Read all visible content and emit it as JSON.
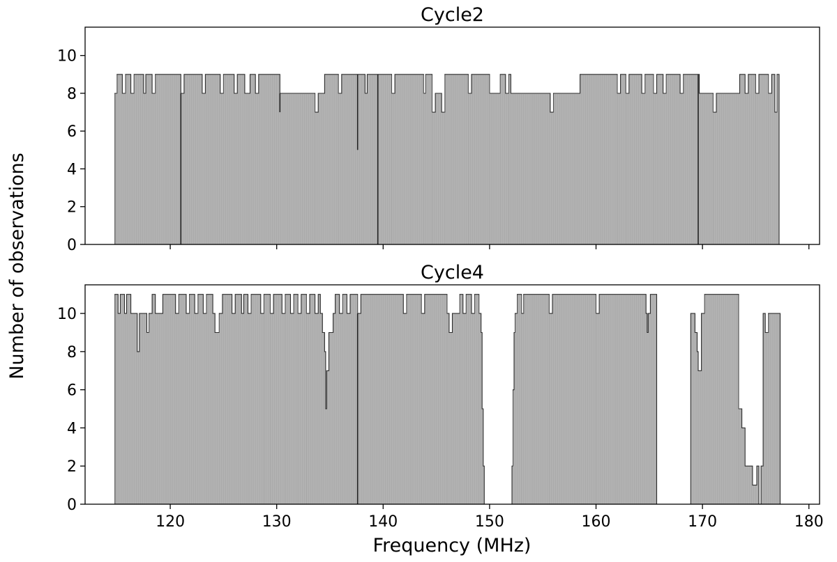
{
  "figure": {
    "ylabel": "Number of observations",
    "xlabel": "Frequency (MHz)"
  },
  "chart_data": [
    {
      "type": "histogram",
      "title": "Cycle2",
      "xlim": [
        112,
        181
      ],
      "ylim": [
        0,
        11.5
      ],
      "xticks": [
        120,
        130,
        140,
        150,
        160,
        170,
        180
      ],
      "yticks": [
        0,
        2,
        4,
        6,
        8,
        10
      ],
      "xtick_labels_shown": false,
      "fill_color": "#b2b2b2",
      "edge_color": "#2b2b2b",
      "steps": [
        [
          114.8,
          8
        ],
        [
          115.0,
          9
        ],
        [
          115.5,
          8
        ],
        [
          115.8,
          9
        ],
        [
          116.3,
          8
        ],
        [
          116.6,
          9
        ],
        [
          117.5,
          8
        ],
        [
          117.7,
          9
        ],
        [
          118.3,
          8
        ],
        [
          118.6,
          9
        ],
        [
          121.0,
          8
        ],
        [
          121.3,
          9
        ],
        [
          123.0,
          8
        ],
        [
          123.3,
          9
        ],
        [
          124.7,
          8
        ],
        [
          125.0,
          9
        ],
        [
          126.0,
          8
        ],
        [
          126.3,
          9
        ],
        [
          127.0,
          8
        ],
        [
          127.5,
          9
        ],
        [
          128.0,
          8
        ],
        [
          128.3,
          9
        ],
        [
          130.3,
          8
        ],
        [
          133.6,
          7
        ],
        [
          133.9,
          8
        ],
        [
          134.5,
          9
        ],
        [
          135.8,
          8
        ],
        [
          136.1,
          9
        ],
        [
          138.3,
          8
        ],
        [
          138.5,
          9
        ],
        [
          140.8,
          8
        ],
        [
          141.1,
          9
        ],
        [
          143.8,
          8
        ],
        [
          144.0,
          9
        ],
        [
          144.6,
          7
        ],
        [
          144.9,
          8
        ],
        [
          145.5,
          7
        ],
        [
          145.8,
          9
        ],
        [
          148.0,
          8
        ],
        [
          148.3,
          9
        ],
        [
          150.0,
          8
        ],
        [
          151.0,
          9
        ],
        [
          151.5,
          8
        ],
        [
          151.8,
          9
        ],
        [
          152.0,
          8
        ],
        [
          155.7,
          7
        ],
        [
          156.0,
          8
        ],
        [
          158.5,
          9
        ],
        [
          162.0,
          8
        ],
        [
          162.3,
          9
        ],
        [
          162.8,
          8
        ],
        [
          163.1,
          9
        ],
        [
          164.3,
          8
        ],
        [
          164.6,
          9
        ],
        [
          165.4,
          8
        ],
        [
          165.7,
          9
        ],
        [
          166.3,
          8
        ],
        [
          166.6,
          9
        ],
        [
          167.9,
          8
        ],
        [
          168.2,
          9
        ],
        [
          169.7,
          8
        ],
        [
          171.0,
          7
        ],
        [
          171.3,
          8
        ],
        [
          173.5,
          9
        ],
        [
          174.0,
          8
        ],
        [
          174.3,
          9
        ],
        [
          175.0,
          8
        ],
        [
          175.3,
          9
        ],
        [
          176.2,
          8
        ],
        [
          176.5,
          9
        ],
        [
          176.8,
          7
        ],
        [
          177.0,
          9
        ],
        [
          177.2,
          null
        ]
      ],
      "spikes": [
        {
          "x": 121.0,
          "y": 0
        },
        {
          "x": 130.3,
          "y": 7
        },
        {
          "x": 137.6,
          "y": 5
        },
        {
          "x": 139.5,
          "y": 0
        },
        {
          "x": 169.6,
          "y": 0
        }
      ]
    },
    {
      "type": "histogram",
      "title": "Cycle4",
      "xlim": [
        112,
        181
      ],
      "ylim": [
        0,
        11.5
      ],
      "xticks": [
        120,
        130,
        140,
        150,
        160,
        170,
        180
      ],
      "yticks": [
        0,
        2,
        4,
        6,
        8,
        10
      ],
      "xtick_labels_shown": true,
      "fill_color": "#b2b2b2",
      "edge_color": "#2b2b2b",
      "steps": [
        [
          114.8,
          11
        ],
        [
          115.1,
          10
        ],
        [
          115.3,
          11
        ],
        [
          115.7,
          10
        ],
        [
          115.9,
          11
        ],
        [
          116.3,
          10
        ],
        [
          116.9,
          8
        ],
        [
          117.1,
          10
        ],
        [
          117.8,
          9
        ],
        [
          118.0,
          10
        ],
        [
          118.3,
          11
        ],
        [
          118.6,
          10
        ],
        [
          119.3,
          11
        ],
        [
          120.5,
          10
        ],
        [
          120.8,
          11
        ],
        [
          121.5,
          10
        ],
        [
          121.8,
          11
        ],
        [
          122.3,
          10
        ],
        [
          122.6,
          11
        ],
        [
          123.1,
          10
        ],
        [
          123.4,
          11
        ],
        [
          124.0,
          10
        ],
        [
          124.2,
          9
        ],
        [
          124.6,
          10
        ],
        [
          124.9,
          11
        ],
        [
          125.8,
          10
        ],
        [
          126.1,
          11
        ],
        [
          126.7,
          10
        ],
        [
          126.9,
          11
        ],
        [
          127.3,
          10
        ],
        [
          127.6,
          11
        ],
        [
          128.5,
          10
        ],
        [
          128.8,
          11
        ],
        [
          129.4,
          10
        ],
        [
          129.7,
          11
        ],
        [
          130.5,
          10
        ],
        [
          130.8,
          11
        ],
        [
          131.3,
          10
        ],
        [
          131.6,
          11
        ],
        [
          132.0,
          10
        ],
        [
          132.3,
          11
        ],
        [
          132.8,
          10
        ],
        [
          133.1,
          11
        ],
        [
          133.6,
          10
        ],
        [
          133.9,
          11
        ],
        [
          134.1,
          10
        ],
        [
          134.3,
          9
        ],
        [
          134.5,
          8
        ],
        [
          134.6,
          5
        ],
        [
          134.7,
          7
        ],
        [
          134.9,
          9
        ],
        [
          135.3,
          10
        ],
        [
          135.5,
          11
        ],
        [
          135.9,
          10
        ],
        [
          136.2,
          11
        ],
        [
          136.6,
          10
        ],
        [
          136.9,
          11
        ],
        [
          137.6,
          10
        ],
        [
          137.9,
          11
        ],
        [
          141.9,
          10
        ],
        [
          142.2,
          11
        ],
        [
          143.6,
          10
        ],
        [
          143.9,
          11
        ],
        [
          146.0,
          10
        ],
        [
          146.2,
          9
        ],
        [
          146.5,
          10
        ],
        [
          147.2,
          11
        ],
        [
          147.5,
          10
        ],
        [
          147.8,
          11
        ],
        [
          148.3,
          10
        ],
        [
          148.6,
          11
        ],
        [
          149.0,
          10
        ],
        [
          149.2,
          9
        ],
        [
          149.3,
          5
        ],
        [
          149.4,
          2
        ],
        [
          149.5,
          null
        ],
        [
          152.1,
          2
        ],
        [
          152.2,
          6
        ],
        [
          152.3,
          9
        ],
        [
          152.4,
          10
        ],
        [
          152.6,
          11
        ],
        [
          153.0,
          10
        ],
        [
          153.2,
          11
        ],
        [
          155.6,
          10
        ],
        [
          155.9,
          11
        ],
        [
          160.0,
          10
        ],
        [
          160.3,
          11
        ],
        [
          164.7,
          10
        ],
        [
          164.8,
          9
        ],
        [
          164.9,
          10
        ],
        [
          165.1,
          11
        ],
        [
          165.7,
          null
        ],
        [
          168.9,
          10
        ],
        [
          169.3,
          9
        ],
        [
          169.5,
          8
        ],
        [
          169.6,
          7
        ],
        [
          169.9,
          10
        ],
        [
          170.2,
          11
        ],
        [
          173.4,
          5
        ],
        [
          173.7,
          4
        ],
        [
          174.0,
          2
        ],
        [
          174.7,
          1
        ],
        [
          175.1,
          2
        ],
        [
          175.3,
          0
        ],
        [
          175.5,
          2
        ],
        [
          175.7,
          10
        ],
        [
          175.9,
          9
        ],
        [
          176.2,
          10
        ],
        [
          177.3,
          null
        ]
      ],
      "spikes": [
        {
          "x": 134.6,
          "y": 5
        },
        {
          "x": 137.6,
          "y": 0
        },
        {
          "x": 175.4,
          "y": 0
        }
      ]
    }
  ]
}
